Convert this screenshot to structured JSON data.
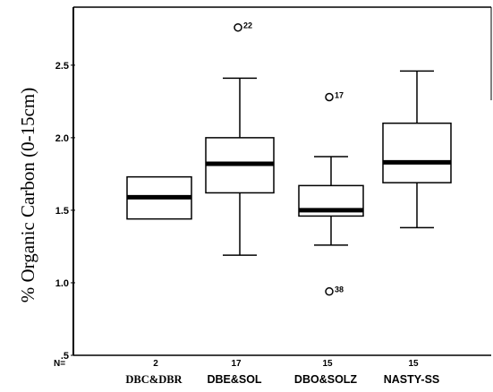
{
  "chart_data": {
    "type": "boxplot",
    "ylabel": "% Organic Carbon (0-15cm)",
    "ylim": [
      0.5,
      2.9
    ],
    "yticks": [
      {
        "value": 0.5,
        "label": ".5"
      },
      {
        "value": 1.0,
        "label": "1.0"
      },
      {
        "value": 1.5,
        "label": "1.5"
      },
      {
        "value": 2.0,
        "label": "2.0"
      },
      {
        "value": 2.5,
        "label": "2.5"
      }
    ],
    "n_prefix": "N=",
    "groups": [
      {
        "category": "DBC&DBR",
        "n": "2",
        "whisker_low": 1.44,
        "q1": 1.44,
        "median": 1.59,
        "q3": 1.73,
        "whisker_high": 1.73,
        "outliers": []
      },
      {
        "category": "DBE&SOL",
        "n": "17",
        "whisker_low": 1.19,
        "q1": 1.62,
        "median": 1.82,
        "q3": 2.0,
        "whisker_high": 2.41,
        "outliers": [
          {
            "value": 2.76,
            "label": "22"
          }
        ]
      },
      {
        "category": "DBO&SOLZ",
        "n": "15",
        "whisker_low": 1.26,
        "q1": 1.46,
        "median": 1.5,
        "q3": 1.67,
        "whisker_high": 1.87,
        "outliers": [
          {
            "value": 2.28,
            "label": "17"
          },
          {
            "value": 0.94,
            "label": "38"
          }
        ]
      },
      {
        "category": "NASTY-SS",
        "n": "15",
        "whisker_low": 1.38,
        "q1": 1.69,
        "median": 1.83,
        "q3": 2.1,
        "whisker_high": 2.46,
        "outliers": []
      }
    ]
  }
}
